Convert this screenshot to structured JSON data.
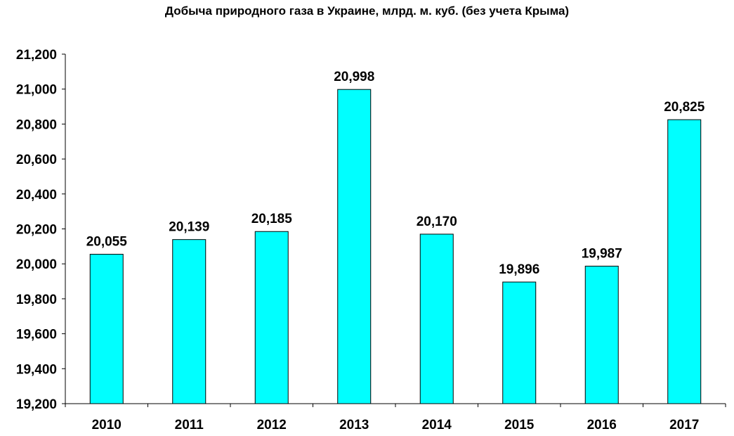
{
  "chart_data": {
    "type": "bar",
    "title": "Добыча природного газа в Украине, млрд. м. куб. (без учета Крыма)",
    "xlabel": "",
    "ylabel": "",
    "categories": [
      "2010",
      "2011",
      "2012",
      "2013",
      "2014",
      "2015",
      "2016",
      "2017"
    ],
    "values": [
      20.055,
      20.139,
      20.185,
      20.998,
      20.17,
      19.896,
      19.987,
      20.825
    ],
    "data_labels": [
      "20,055",
      "20,139",
      "20,185",
      "20,998",
      "20,170",
      "19,896",
      "19,987",
      "20,825"
    ],
    "ylim": [
      19.2,
      21.2
    ],
    "yticks": [
      19.2,
      19.4,
      19.6,
      19.8,
      20.0,
      20.2,
      20.4,
      20.6,
      20.8,
      21.0,
      21.2
    ],
    "ytick_labels": [
      "19,200",
      "19,400",
      "19,600",
      "19,800",
      "20,000",
      "20,200",
      "20,400",
      "20,600",
      "20,800",
      "21,000",
      "21,200"
    ],
    "grid": false,
    "legend": "none",
    "bar_color": "#00ffff",
    "bar_edge_color": "#000000"
  }
}
